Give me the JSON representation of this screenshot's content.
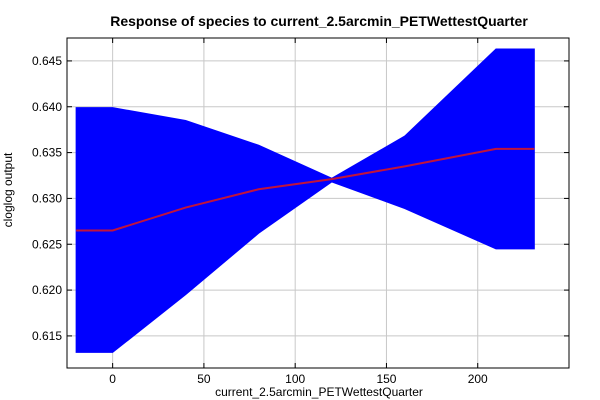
{
  "chart_data": {
    "type": "area",
    "title": "Response of species to current_2.5arcmin_PETWettestQuarter",
    "xlabel": "current_2.5arcmin_PETWettestQuarter",
    "ylabel": "cloglog output",
    "xlim": [
      -25,
      250
    ],
    "ylim": [
      0.6115,
      0.6475
    ],
    "grid": true,
    "x_ticks": [
      0,
      50,
      100,
      150,
      200
    ],
    "x_tick_labels": [
      "0",
      "50",
      "100",
      "150",
      "200"
    ],
    "y_ticks": [
      0.615,
      0.62,
      0.625,
      0.63,
      0.635,
      0.64,
      0.645
    ],
    "y_tick_labels": [
      "0.615",
      "0.620",
      "0.625",
      "0.630",
      "0.635",
      "0.640",
      "0.645"
    ],
    "series": [
      {
        "kind": "band",
        "color": "#0000ff",
        "x": [
          -20,
          0,
          40,
          80,
          120,
          160,
          210,
          231
        ],
        "upper": [
          0.6399,
          0.6399,
          0.6385,
          0.6358,
          0.6322,
          0.6368,
          0.6463,
          0.6463
        ],
        "lower": [
          0.6132,
          0.6132,
          0.6195,
          0.6262,
          0.6318,
          0.6289,
          0.6245,
          0.6245
        ]
      },
      {
        "kind": "line",
        "color": "#c0143c",
        "x": [
          -20,
          0,
          40,
          80,
          120,
          160,
          210,
          231
        ],
        "values": [
          0.6265,
          0.6265,
          0.629,
          0.631,
          0.6321,
          0.6335,
          0.6354,
          0.6354
        ]
      }
    ]
  }
}
